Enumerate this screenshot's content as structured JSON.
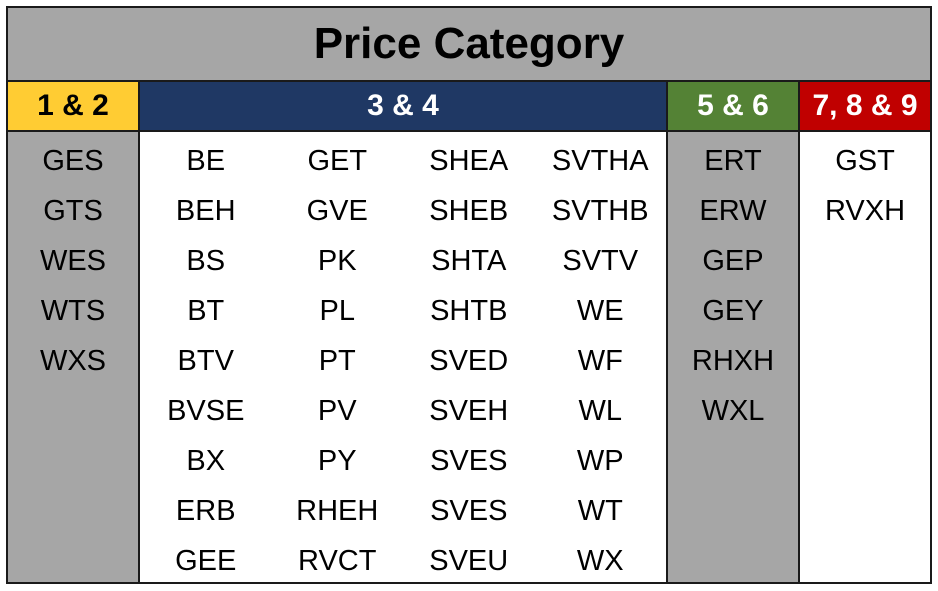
{
  "title": "Price Category",
  "headers": [
    "1 & 2",
    "3 & 4",
    "5 & 6",
    "7, 8 & 9"
  ],
  "colors": {
    "title_bg": "#a6a6a6",
    "cat_1_2": "#ffcc33",
    "cat_3_4": "#1f3864",
    "cat_5_6": "#548235",
    "cat_7_8_9": "#c00000",
    "grey_column": "#a6a6a6"
  },
  "cat_1_2": [
    "GES",
    "GTS",
    "WES",
    "WTS",
    "WXS"
  ],
  "cat_3_4": [
    [
      "BE",
      "BEH",
      "BS",
      "BT",
      "BTV",
      "BVSE",
      "BX",
      "ERB",
      "GEE"
    ],
    [
      "GET",
      "GVE",
      "PK",
      "PL",
      "PT",
      "PV",
      "PY",
      "RHEH",
      "RVCT"
    ],
    [
      "SHEA",
      "SHEB",
      "SHTA",
      "SHTB",
      "SVED",
      "SVEH",
      "SVES",
      "SVES",
      "SVEU"
    ],
    [
      "SVTHA",
      "SVTHB",
      "SVTV",
      "WE",
      "WF",
      "WL",
      "WP",
      "WT",
      "WX"
    ]
  ],
  "cat_5_6": [
    "ERT",
    "ERW",
    "GEP",
    "GEY",
    "RHXH",
    "WXL"
  ],
  "cat_7_8_9": [
    "GST",
    "RVXH"
  ]
}
